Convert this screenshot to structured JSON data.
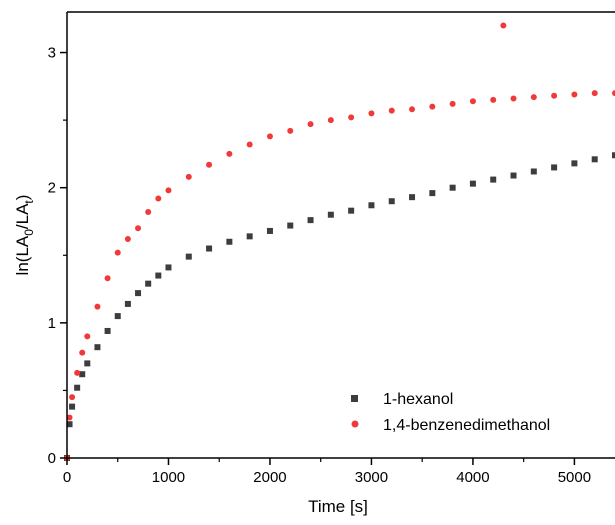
{
  "chart_data": {
    "type": "scatter",
    "title": "",
    "xlabel": "Time [s]",
    "ylabel_parts": {
      "main": "ln(LA",
      "sub1": "0",
      "mid": "/LA",
      "sub2": "t",
      "end": ")"
    },
    "xlim": [
      0,
      5400
    ],
    "ylim": [
      0,
      3.3
    ],
    "x_ticks": [
      0,
      1000,
      2000,
      3000,
      4000,
      5000
    ],
    "x_tick_labels": [
      "0",
      "1000",
      "2000",
      "3000",
      "4000",
      "5000"
    ],
    "y_ticks": [
      0,
      1,
      2,
      3
    ],
    "y_tick_labels": [
      "0",
      "1",
      "2",
      "3"
    ],
    "grid": false,
    "legend_position": "bottom-right",
    "series": [
      {
        "name": "1-hexanol",
        "marker": "square",
        "color": "#3d3d3d",
        "x": [
          0,
          25,
          50,
          100,
          150,
          200,
          300,
          400,
          500,
          600,
          700,
          800,
          900,
          1000,
          1200,
          1400,
          1600,
          1800,
          2000,
          2200,
          2400,
          2600,
          2800,
          3000,
          3200,
          3400,
          3600,
          3800,
          4000,
          4200,
          4400,
          4600,
          4800,
          5000,
          5200,
          5400
        ],
        "y": [
          0.0,
          0.25,
          0.38,
          0.52,
          0.62,
          0.7,
          0.82,
          0.94,
          1.05,
          1.14,
          1.22,
          1.29,
          1.35,
          1.41,
          1.49,
          1.55,
          1.6,
          1.64,
          1.68,
          1.72,
          1.76,
          1.8,
          1.83,
          1.87,
          1.9,
          1.93,
          1.96,
          2.0,
          2.03,
          2.06,
          2.09,
          2.12,
          2.15,
          2.18,
          2.21,
          2.24
        ]
      },
      {
        "name": "1,4-benzenedimethanol",
        "marker": "circle",
        "color": "#f03a3a",
        "x": [
          0,
          25,
          50,
          100,
          150,
          200,
          300,
          400,
          500,
          600,
          700,
          800,
          900,
          1000,
          1200,
          1400,
          1600,
          1800,
          2000,
          2200,
          2400,
          2600,
          2800,
          3000,
          3200,
          3400,
          3600,
          3800,
          4000,
          4200,
          4300,
          4400,
          4600,
          4800,
          5000,
          5200,
          5400
        ],
        "y": [
          0.0,
          0.3,
          0.45,
          0.63,
          0.78,
          0.9,
          1.12,
          1.33,
          1.52,
          1.62,
          1.7,
          1.82,
          1.92,
          1.98,
          2.08,
          2.17,
          2.25,
          2.32,
          2.38,
          2.42,
          2.47,
          2.5,
          2.52,
          2.55,
          2.57,
          2.58,
          2.6,
          2.62,
          2.64,
          2.65,
          3.2,
          2.66,
          2.67,
          2.68,
          2.69,
          2.7,
          2.7
        ]
      }
    ]
  }
}
